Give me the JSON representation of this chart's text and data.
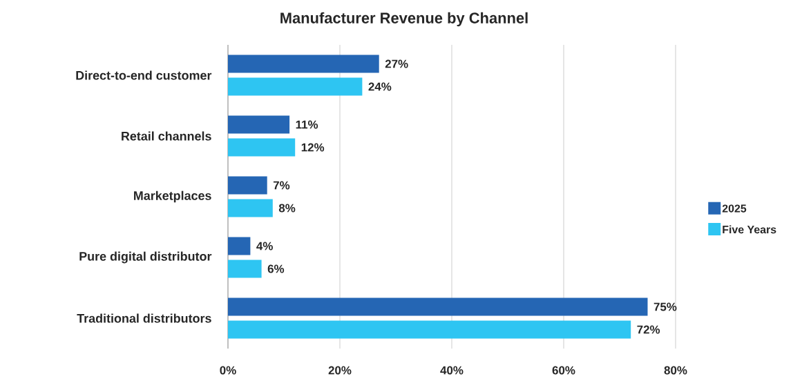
{
  "chart_data": {
    "type": "bar",
    "orientation": "horizontal",
    "title": "Manufacturer Revenue by Channel",
    "categories": [
      "Direct-to-end customer",
      "Retail channels",
      "Marketplaces",
      "Pure digital distributor",
      "Traditional distributors"
    ],
    "series": [
      {
        "name": "2025",
        "color": "#2566b4",
        "values": [
          27,
          11,
          7,
          4,
          75
        ],
        "value_labels": [
          "27%",
          "11%",
          "7%",
          "4%",
          "75%"
        ]
      },
      {
        "name": "Five Years",
        "color": "#2ec5f2",
        "values": [
          24,
          12,
          8,
          6,
          72
        ],
        "value_labels": [
          "24%",
          "12%",
          "8%",
          "6%",
          "72%"
        ]
      }
    ],
    "xlim": [
      0,
      80
    ],
    "xticks": [
      {
        "value": 0,
        "label": "0%"
      },
      {
        "value": 20,
        "label": "20%"
      },
      {
        "value": 40,
        "label": "40%"
      },
      {
        "value": 60,
        "label": "60%"
      },
      {
        "value": 80,
        "label": "80%"
      }
    ],
    "grid": "x",
    "legend": "right"
  }
}
